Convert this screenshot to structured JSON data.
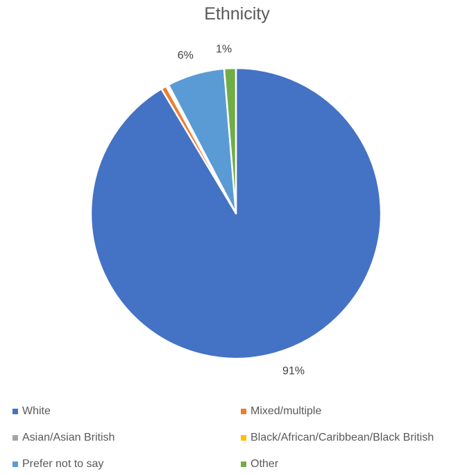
{
  "chart_data": {
    "type": "pie",
    "title": "Ethnicity",
    "categories": [
      "White",
      "Mixed/multiple",
      "Asian/Asian British",
      "Black/African/Caribbean/Black British",
      "Prefer not to say",
      "Other"
    ],
    "values": [
      91.4,
      0.6,
      0.2,
      0.1,
      6.4,
      1.3
    ],
    "data_labels": [
      "91%",
      "",
      "",
      "",
      "6%",
      "1%"
    ],
    "colors": [
      "#4472C4",
      "#ED7D31",
      "#A5A5A5",
      "#FFC000",
      "#5B9BD5",
      "#70AD47"
    ],
    "legend_position": "bottom"
  }
}
